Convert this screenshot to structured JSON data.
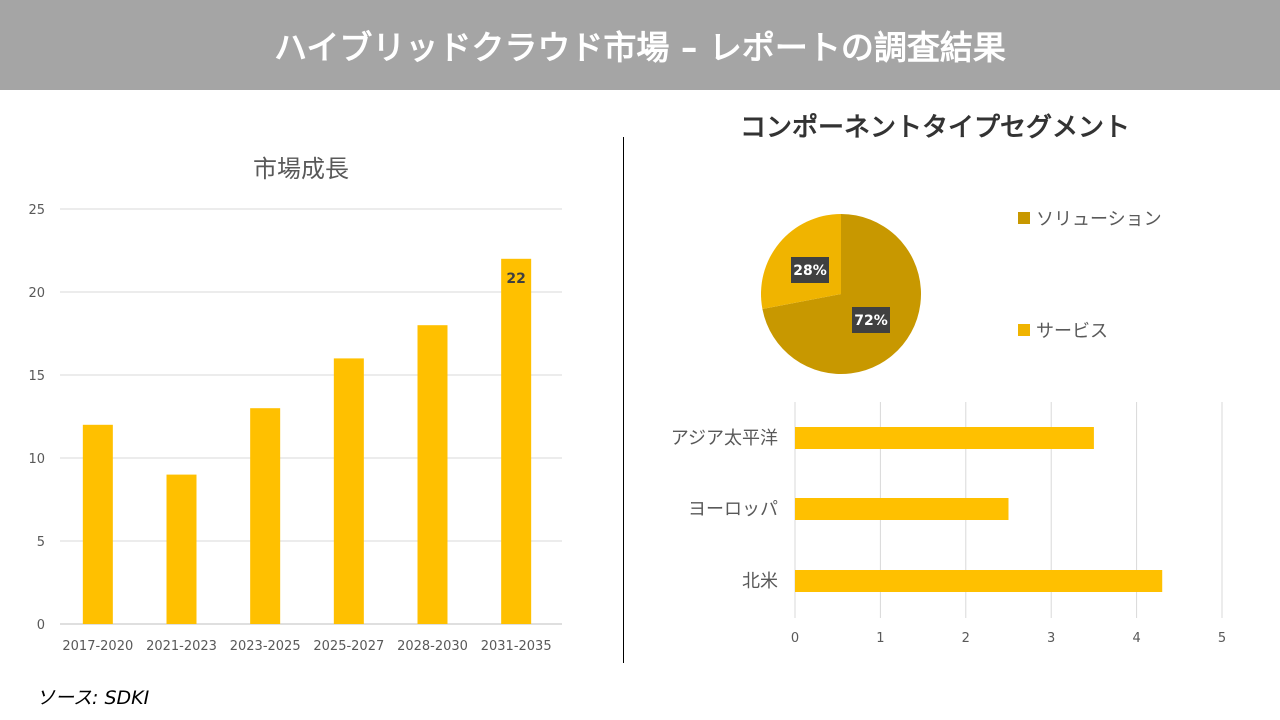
{
  "header": {
    "title": "ハイブリッドクラウド市場 – レポートの調査結果"
  },
  "source": "ソース: SDKI",
  "chart_data": [
    {
      "type": "bar",
      "title": "市場成長",
      "categories": [
        "2017-2020",
        "2021-2023",
        "2023-2025",
        "2025-2027",
        "2028-2030",
        "2031-2035"
      ],
      "values": [
        12,
        9,
        13,
        16,
        18,
        22
      ],
      "data_labels": {
        "2031-2035": "22"
      },
      "ylim": [
        0,
        25
      ],
      "yticks": [
        0,
        5,
        10,
        15,
        20,
        25
      ],
      "grid": true,
      "color": "#FFC000"
    },
    {
      "type": "pie",
      "title": "コンポーネントタイプセグメント",
      "categories": [
        "ソリューション",
        "サービス"
      ],
      "values": [
        72,
        28
      ],
      "data_labels": [
        "72%",
        "28%"
      ],
      "colors": [
        "#C89800",
        "#F0B400"
      ],
      "legend": "right"
    },
    {
      "type": "bar",
      "orientation": "horizontal",
      "categories": [
        "アジア太平洋",
        "ヨーロッパ",
        "北米"
      ],
      "values": [
        3.5,
        2.5,
        4.3
      ],
      "xlim": [
        0,
        5
      ],
      "xticks": [
        0,
        1,
        2,
        3,
        4,
        5
      ],
      "grid": true,
      "color": "#FFC000"
    }
  ]
}
